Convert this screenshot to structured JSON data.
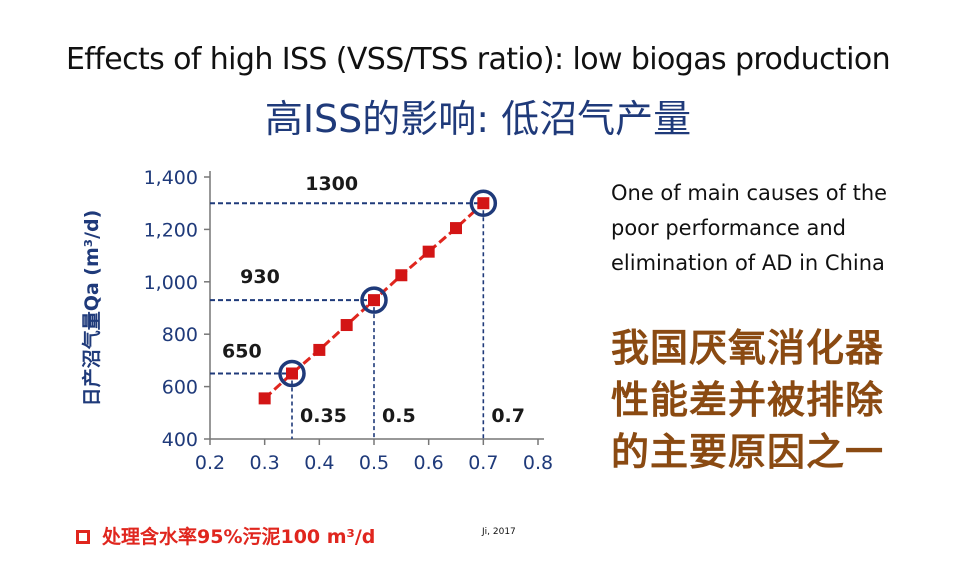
{
  "title_en": "Effects of high ISS (VSS/TSS ratio): low biogas production",
  "title_zh": "高ISS的影响: 低沼气产量",
  "note_en": "One of main causes of the poor performance and elimination of AD in China",
  "note_zh": "我国厌氧消化器性能差并被排除的主要原因之一",
  "caption": "处理含水率95%污泥100 m³/d",
  "citation": "Ji, 2017",
  "colors": {
    "title_zh": "#1f3a7a",
    "note_zh": "#8a4a12",
    "axis_text": "#1f3a7a",
    "series": "#e0261e",
    "line": "#e0261e",
    "circle": "#1f3a7a",
    "caption": "#e0261e"
  },
  "chart_data": {
    "type": "line",
    "xlabel": "",
    "ylabel": "日产沼气量Qa (m³/d)",
    "xlim": [
      0.2,
      0.8
    ],
    "ylim": [
      400,
      1400
    ],
    "xticks": [
      "0.2",
      "0.3",
      "0.4",
      "0.5",
      "0.6",
      "0.7",
      "0.8"
    ],
    "yticks": [
      "400",
      "600",
      "800",
      "1,000",
      "1,200",
      "1,400"
    ],
    "grid": false,
    "series": [
      {
        "x": [
          0.3,
          0.35,
          0.4,
          0.45,
          0.5,
          0.55,
          0.6,
          0.65,
          0.7
        ],
        "y": [
          555,
          650,
          740,
          835,
          930,
          1025,
          1115,
          1205,
          1300
        ]
      }
    ],
    "highlights": [
      {
        "x": 0.35,
        "y": 650,
        "x_label": "0.35",
        "y_label": "650"
      },
      {
        "x": 0.5,
        "y": 930,
        "x_label": "0.5",
        "y_label": "930"
      },
      {
        "x": 0.7,
        "y": 1300,
        "x_label": "0.7",
        "y_label": "1300"
      }
    ]
  }
}
